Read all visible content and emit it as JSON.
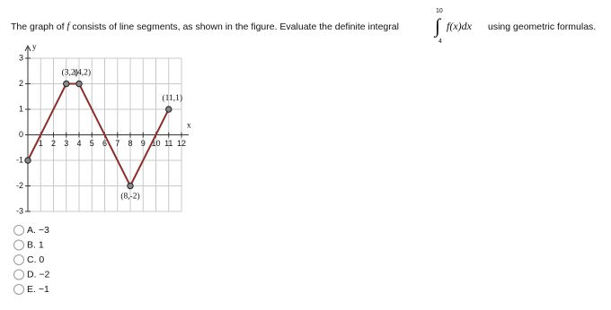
{
  "question": {
    "before": "The graph of",
    "f": "f",
    "middle": "consists of line segments, as shown in the figure. Evaluate the definite integral",
    "upper": "10",
    "lower": "4",
    "integrand": "f(x)dx",
    "after": "using geometric formulas."
  },
  "chart_data": {
    "type": "line",
    "x": [
      0,
      3,
      4,
      8,
      11
    ],
    "values": [
      -1,
      2,
      2,
      -2,
      1
    ],
    "value_labels": [
      null,
      "(3,2)",
      "(4,2)",
      "(8,-2)",
      "(11,1)"
    ],
    "color": "#8b2e2e",
    "xlim": [
      0,
      12
    ],
    "ylim": [
      -3,
      3
    ],
    "xticks": [
      1,
      2,
      3,
      4,
      5,
      6,
      7,
      8,
      9,
      10,
      11,
      12
    ],
    "yticks": [
      -3,
      -2,
      -1,
      0,
      1,
      2,
      3
    ],
    "xlabel": "x",
    "ylabel": "y",
    "grid": true
  },
  "choices": [
    "A. −3",
    "B. 1",
    "C. 0",
    "D. −2",
    "E. −1"
  ]
}
